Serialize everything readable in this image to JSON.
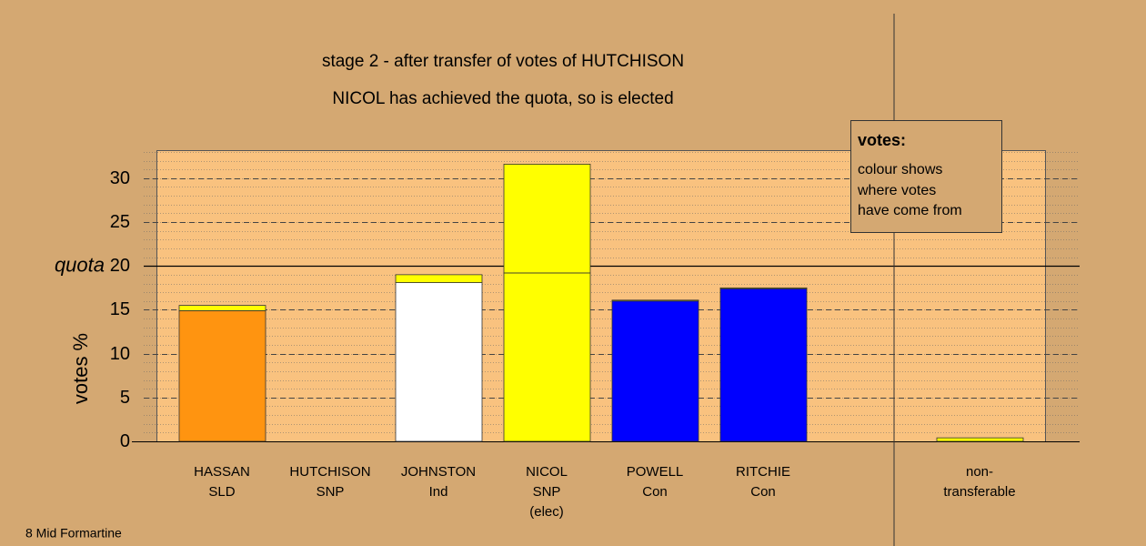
{
  "chart_data": {
    "type": "stacked-bar",
    "title": "stage 2 - after transfer of votes of HUTCHISON",
    "subtitle": "NICOL has achieved the quota, so is elected",
    "y_label": "votes %",
    "categories": [
      [
        "HASSAN",
        "SLD"
      ],
      [
        "HUTCHISON",
        "SNP"
      ],
      [
        "JOHNSTON",
        "Ind"
      ],
      [
        "NICOL",
        "SNP",
        "(elec)"
      ],
      [
        "POWELL",
        "Con"
      ],
      [
        "RITCHIE",
        "Con"
      ],
      null,
      [
        "non-",
        "transferable"
      ]
    ],
    "series": [
      {
        "colors": [
          "#ff9410",
          "#ffff00",
          "#ffffff",
          "#ffff00",
          "#0000ff",
          "#0000ff",
          null,
          "#ffff00"
        ],
        "values": [
          14.9,
          0,
          18.1,
          19.2,
          16.0,
          17.4,
          null,
          0
        ]
      },
      {
        "colors": [
          "#ffff00",
          "#ffff00",
          "#ffff00",
          "#ffff00",
          "#ffff00",
          "#ffff00",
          null,
          "#ffff00"
        ],
        "values": [
          0.6,
          0,
          0.9,
          12.4,
          0.1,
          0.1,
          null,
          0.4
        ]
      }
    ],
    "ylim": [
      0,
      33.2
    ],
    "yticks": [
      0,
      5,
      10,
      15,
      20,
      25,
      30
    ],
    "minor_grid_step": 1,
    "quota": {
      "value": 20,
      "label": "quota"
    },
    "legend_box": {
      "title": "votes:",
      "lines": [
        "colour shows",
        "where votes",
        "have come from"
      ]
    },
    "footer": "8 Mid Formartine"
  }
}
